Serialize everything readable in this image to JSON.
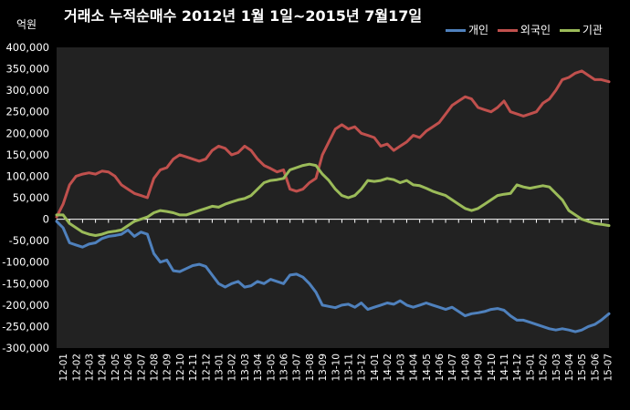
{
  "chart_data": {
    "type": "line",
    "title": "거래소  누적순매수 2012년 1월 1일~2015년 7월17일",
    "unit_label": "억원",
    "ylim": [
      -300000,
      400000
    ],
    "yticks": [
      400000,
      350000,
      300000,
      250000,
      200000,
      150000,
      100000,
      50000,
      0,
      -50000,
      -100000,
      -150000,
      -200000,
      -250000,
      -300000
    ],
    "ytick_labels": [
      "400,000",
      "350,000",
      "300,000",
      "250,000",
      "200,000",
      "150,000",
      "100,000",
      "50,000",
      "0",
      "-50,000",
      "-100,000",
      "-150,000",
      "-200,000",
      "-250,000",
      "-300,000"
    ],
    "grid": false,
    "legend_position": "top-right",
    "background": "#000000",
    "categories": [
      "12-01",
      "12-02",
      "12-03",
      "12-04",
      "12-05",
      "12-06",
      "12-07",
      "12-08",
      "12-09",
      "12-10",
      "12-11",
      "12-12",
      "13-01",
      "13-02",
      "13-03",
      "13-04",
      "13-05",
      "13-06",
      "13-07",
      "13-08",
      "13-09",
      "13-10",
      "13-11",
      "13-12",
      "14-01",
      "14-02",
      "14-03",
      "14-04",
      "14-05",
      "14-06",
      "14-07",
      "14-08",
      "14-09",
      "14-10",
      "14-11",
      "14-12",
      "15-01",
      "15-02",
      "15-03",
      "15-04",
      "15-05",
      "15-06",
      "15-07"
    ],
    "x_range": [
      0,
      42.6
    ],
    "series": [
      {
        "name": "개인",
        "color": "#4f81bd",
        "points": [
          [
            0,
            -5000
          ],
          [
            0.5,
            -20000
          ],
          [
            1,
            -55000
          ],
          [
            1.5,
            -60000
          ],
          [
            2,
            -65000
          ],
          [
            2.5,
            -58000
          ],
          [
            3,
            -55000
          ],
          [
            3.5,
            -45000
          ],
          [
            4,
            -40000
          ],
          [
            4.5,
            -38000
          ],
          [
            5,
            -35000
          ],
          [
            5.5,
            -25000
          ],
          [
            6,
            -40000
          ],
          [
            6.5,
            -30000
          ],
          [
            7,
            -35000
          ],
          [
            7.5,
            -80000
          ],
          [
            8,
            -100000
          ],
          [
            8.5,
            -95000
          ],
          [
            9,
            -120000
          ],
          [
            9.5,
            -122000
          ],
          [
            10,
            -115000
          ],
          [
            10.5,
            -108000
          ],
          [
            11,
            -105000
          ],
          [
            11.5,
            -110000
          ],
          [
            12,
            -130000
          ],
          [
            12.5,
            -150000
          ],
          [
            13,
            -158000
          ],
          [
            13.5,
            -150000
          ],
          [
            14,
            -145000
          ],
          [
            14.5,
            -158000
          ],
          [
            15,
            -155000
          ],
          [
            15.5,
            -145000
          ],
          [
            16,
            -150000
          ],
          [
            16.5,
            -140000
          ],
          [
            17,
            -145000
          ],
          [
            17.5,
            -150000
          ],
          [
            18,
            -130000
          ],
          [
            18.5,
            -128000
          ],
          [
            19,
            -135000
          ],
          [
            19.5,
            -150000
          ],
          [
            20,
            -170000
          ],
          [
            20.5,
            -200000
          ],
          [
            21,
            -203000
          ],
          [
            21.5,
            -206000
          ],
          [
            22,
            -200000
          ],
          [
            22.5,
            -198000
          ],
          [
            23,
            -205000
          ],
          [
            23.5,
            -195000
          ],
          [
            24,
            -210000
          ],
          [
            24.5,
            -205000
          ],
          [
            25,
            -200000
          ],
          [
            25.5,
            -195000
          ],
          [
            26,
            -198000
          ],
          [
            26.5,
            -190000
          ],
          [
            27,
            -200000
          ],
          [
            27.5,
            -205000
          ],
          [
            28,
            -200000
          ],
          [
            28.5,
            -195000
          ],
          [
            29,
            -200000
          ],
          [
            29.5,
            -205000
          ],
          [
            30,
            -210000
          ],
          [
            30.5,
            -205000
          ],
          [
            31,
            -215000
          ],
          [
            31.5,
            -225000
          ],
          [
            32,
            -220000
          ],
          [
            32.5,
            -218000
          ],
          [
            33,
            -215000
          ],
          [
            33.5,
            -210000
          ],
          [
            34,
            -208000
          ],
          [
            34.5,
            -212000
          ],
          [
            35,
            -225000
          ],
          [
            35.5,
            -235000
          ],
          [
            36,
            -235000
          ],
          [
            36.5,
            -240000
          ],
          [
            37,
            -245000
          ],
          [
            37.5,
            -250000
          ],
          [
            38,
            -255000
          ],
          [
            38.5,
            -258000
          ],
          [
            39,
            -255000
          ],
          [
            39.5,
            -258000
          ],
          [
            40,
            -262000
          ],
          [
            40.5,
            -258000
          ],
          [
            41,
            -250000
          ],
          [
            41.5,
            -245000
          ],
          [
            42,
            -235000
          ],
          [
            42.6,
            -220000
          ]
        ]
      },
      {
        "name": "외국인",
        "color": "#c0504d",
        "points": [
          [
            0,
            5000
          ],
          [
            0.5,
            35000
          ],
          [
            1,
            80000
          ],
          [
            1.5,
            100000
          ],
          [
            2,
            105000
          ],
          [
            2.5,
            108000
          ],
          [
            3,
            105000
          ],
          [
            3.5,
            112000
          ],
          [
            4,
            110000
          ],
          [
            4.5,
            100000
          ],
          [
            5,
            80000
          ],
          [
            5.5,
            70000
          ],
          [
            6,
            60000
          ],
          [
            6.5,
            55000
          ],
          [
            7,
            50000
          ],
          [
            7.5,
            95000
          ],
          [
            8,
            115000
          ],
          [
            8.5,
            120000
          ],
          [
            9,
            140000
          ],
          [
            9.5,
            150000
          ],
          [
            10,
            145000
          ],
          [
            10.5,
            140000
          ],
          [
            11,
            135000
          ],
          [
            11.5,
            140000
          ],
          [
            12,
            160000
          ],
          [
            12.5,
            170000
          ],
          [
            13,
            165000
          ],
          [
            13.5,
            150000
          ],
          [
            14,
            155000
          ],
          [
            14.5,
            170000
          ],
          [
            15,
            160000
          ],
          [
            15.5,
            140000
          ],
          [
            16,
            125000
          ],
          [
            16.5,
            118000
          ],
          [
            17,
            110000
          ],
          [
            17.5,
            115000
          ],
          [
            18,
            70000
          ],
          [
            18.5,
            65000
          ],
          [
            19,
            70000
          ],
          [
            19.5,
            85000
          ],
          [
            20,
            95000
          ],
          [
            20.5,
            150000
          ],
          [
            21,
            180000
          ],
          [
            21.5,
            210000
          ],
          [
            22,
            220000
          ],
          [
            22.5,
            210000
          ],
          [
            23,
            215000
          ],
          [
            23.5,
            200000
          ],
          [
            24,
            195000
          ],
          [
            24.5,
            190000
          ],
          [
            25,
            170000
          ],
          [
            25.5,
            175000
          ],
          [
            26,
            160000
          ],
          [
            26.5,
            170000
          ],
          [
            27,
            180000
          ],
          [
            27.5,
            195000
          ],
          [
            28,
            190000
          ],
          [
            28.5,
            205000
          ],
          [
            29,
            215000
          ],
          [
            29.5,
            225000
          ],
          [
            30,
            245000
          ],
          [
            30.5,
            265000
          ],
          [
            31,
            275000
          ],
          [
            31.5,
            285000
          ],
          [
            32,
            280000
          ],
          [
            32.5,
            260000
          ],
          [
            33,
            255000
          ],
          [
            33.5,
            250000
          ],
          [
            34,
            260000
          ],
          [
            34.5,
            275000
          ],
          [
            35,
            250000
          ],
          [
            35.5,
            245000
          ],
          [
            36,
            240000
          ],
          [
            36.5,
            245000
          ],
          [
            37,
            250000
          ],
          [
            37.5,
            270000
          ],
          [
            38,
            280000
          ],
          [
            38.5,
            300000
          ],
          [
            39,
            325000
          ],
          [
            39.5,
            330000
          ],
          [
            40,
            340000
          ],
          [
            40.5,
            345000
          ],
          [
            41,
            335000
          ],
          [
            41.5,
            325000
          ],
          [
            42,
            325000
          ],
          [
            42.6,
            320000
          ]
        ]
      },
      {
        "name": "기관",
        "color": "#9bbb59",
        "points": [
          [
            0,
            10000
          ],
          [
            0.5,
            10000
          ],
          [
            1,
            -10000
          ],
          [
            1.5,
            -20000
          ],
          [
            2,
            -30000
          ],
          [
            2.5,
            -35000
          ],
          [
            3,
            -38000
          ],
          [
            3.5,
            -35000
          ],
          [
            4,
            -30000
          ],
          [
            4.5,
            -28000
          ],
          [
            5,
            -25000
          ],
          [
            5.5,
            -15000
          ],
          [
            6,
            -5000
          ],
          [
            6.5,
            0
          ],
          [
            7,
            5000
          ],
          [
            7.5,
            15000
          ],
          [
            8,
            20000
          ],
          [
            8.5,
            18000
          ],
          [
            9,
            15000
          ],
          [
            9.5,
            10000
          ],
          [
            10,
            10000
          ],
          [
            10.5,
            15000
          ],
          [
            11,
            20000
          ],
          [
            11.5,
            25000
          ],
          [
            12,
            30000
          ],
          [
            12.5,
            28000
          ],
          [
            13,
            35000
          ],
          [
            13.5,
            40000
          ],
          [
            14,
            45000
          ],
          [
            14.5,
            48000
          ],
          [
            15,
            55000
          ],
          [
            15.5,
            70000
          ],
          [
            16,
            85000
          ],
          [
            16.5,
            90000
          ],
          [
            17,
            92000
          ],
          [
            17.5,
            95000
          ],
          [
            18,
            115000
          ],
          [
            18.5,
            120000
          ],
          [
            19,
            125000
          ],
          [
            19.5,
            128000
          ],
          [
            20,
            125000
          ],
          [
            20.5,
            105000
          ],
          [
            21,
            90000
          ],
          [
            21.5,
            70000
          ],
          [
            22,
            55000
          ],
          [
            22.5,
            50000
          ],
          [
            23,
            55000
          ],
          [
            23.5,
            70000
          ],
          [
            24,
            90000
          ],
          [
            24.5,
            88000
          ],
          [
            25,
            90000
          ],
          [
            25.5,
            95000
          ],
          [
            26,
            92000
          ],
          [
            26.5,
            85000
          ],
          [
            27,
            90000
          ],
          [
            27.5,
            80000
          ],
          [
            28,
            78000
          ],
          [
            28.5,
            72000
          ],
          [
            29,
            65000
          ],
          [
            29.5,
            60000
          ],
          [
            30,
            55000
          ],
          [
            30.5,
            45000
          ],
          [
            31,
            35000
          ],
          [
            31.5,
            25000
          ],
          [
            32,
            20000
          ],
          [
            32.5,
            25000
          ],
          [
            33,
            35000
          ],
          [
            33.5,
            45000
          ],
          [
            34,
            55000
          ],
          [
            34.5,
            58000
          ],
          [
            35,
            60000
          ],
          [
            35.5,
            80000
          ],
          [
            36,
            75000
          ],
          [
            36.5,
            72000
          ],
          [
            37,
            75000
          ],
          [
            37.5,
            78000
          ],
          [
            38,
            75000
          ],
          [
            38.5,
            60000
          ],
          [
            39,
            45000
          ],
          [
            39.5,
            20000
          ],
          [
            40,
            10000
          ],
          [
            40.5,
            0
          ],
          [
            41,
            -5000
          ],
          [
            41.5,
            -10000
          ],
          [
            42,
            -12000
          ],
          [
            42.6,
            -15000
          ]
        ]
      }
    ]
  }
}
